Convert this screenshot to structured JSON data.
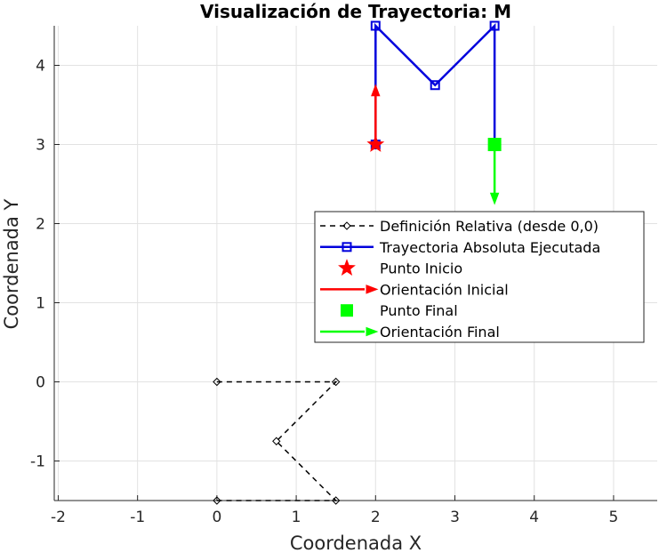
{
  "chart_data": {
    "type": "line",
    "title": "Visualización de Trayectoria: M",
    "xlabel": "Coordenada X",
    "ylabel": "Coordenada Y",
    "xlim": [
      -2.05,
      5.55
    ],
    "ylim": [
      -1.5,
      4.5
    ],
    "xticks": [
      -2,
      -1,
      0,
      1,
      2,
      3,
      4,
      5
    ],
    "yticks": [
      -1,
      0,
      1,
      2,
      3,
      4
    ],
    "grid": true,
    "legend_position": "right",
    "series": [
      {
        "name": "Definición Relativa (desde 0,0)",
        "style": "dashed",
        "color": "#000000",
        "marker": "diamond",
        "x": [
          0,
          1.5,
          0.75,
          1.5,
          0
        ],
        "y": [
          0,
          0,
          -0.75,
          -1.5,
          -1.5
        ]
      },
      {
        "name": "Trayectoria Absoluta Ejecutada",
        "style": "solid",
        "color": "#0000dd",
        "marker": "square",
        "x": [
          2,
          2,
          2.75,
          3.5,
          3.5
        ],
        "y": [
          3,
          4.5,
          3.75,
          4.5,
          3
        ]
      },
      {
        "name": "Punto Inicio",
        "style": "marker",
        "color": "#ff0000",
        "marker": "star",
        "x": [
          2
        ],
        "y": [
          3
        ]
      },
      {
        "name": "Orientación Inicial",
        "style": "arrow",
        "color": "#ff0000",
        "x": [
          2,
          2
        ],
        "y": [
          3,
          3.75
        ]
      },
      {
        "name": "Punto Final",
        "style": "marker",
        "color": "#00ff00",
        "marker": "square",
        "x": [
          3.5
        ],
        "y": [
          3
        ]
      },
      {
        "name": "Orientación Final",
        "style": "arrow",
        "color": "#00ff00",
        "x": [
          3.5,
          3.5
        ],
        "y": [
          3,
          2.25
        ]
      }
    ]
  }
}
